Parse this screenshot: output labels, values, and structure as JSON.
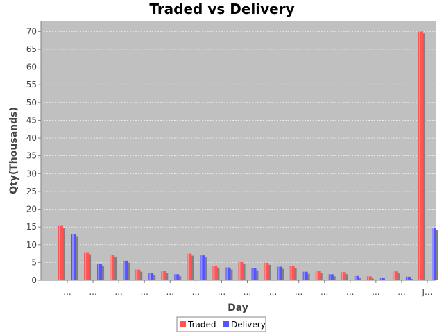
{
  "chart_data": {
    "type": "bar",
    "title": "Traded vs Delivery",
    "xlabel": "Day",
    "ylabel": "Qty(Thousands)",
    "ylim": [
      0,
      73
    ],
    "yticks": [
      0,
      5,
      10,
      15,
      20,
      25,
      30,
      35,
      40,
      45,
      50,
      55,
      60,
      65,
      70
    ],
    "grid": true,
    "legend_position": "bottom",
    "categories": [
      "...",
      "...",
      "...",
      "...",
      "...",
      "...",
      "...",
      "...",
      "...",
      "...",
      "...",
      "...",
      "...",
      "...",
      "J..."
    ],
    "series": [
      {
        "name": "Traded",
        "color": "#ff5555",
        "values": [
          15.3,
          7.9,
          7.1,
          3.0,
          2.6,
          7.5,
          4.0,
          5.2,
          4.9,
          4.1,
          2.6,
          2.3,
          1.1,
          2.5,
          70.0
        ]
      },
      {
        "name": "Delivery",
        "color": "#5555ff",
        "values": [
          13.0,
          4.6,
          5.5,
          2.0,
          1.7,
          7.0,
          3.6,
          3.4,
          3.8,
          2.4,
          1.7,
          1.2,
          0.7,
          1.0,
          14.8
        ]
      }
    ],
    "colors": {
      "plot_background": "#c0c0c0",
      "gridline": "#ffffff",
      "shadow": "#808080"
    }
  }
}
